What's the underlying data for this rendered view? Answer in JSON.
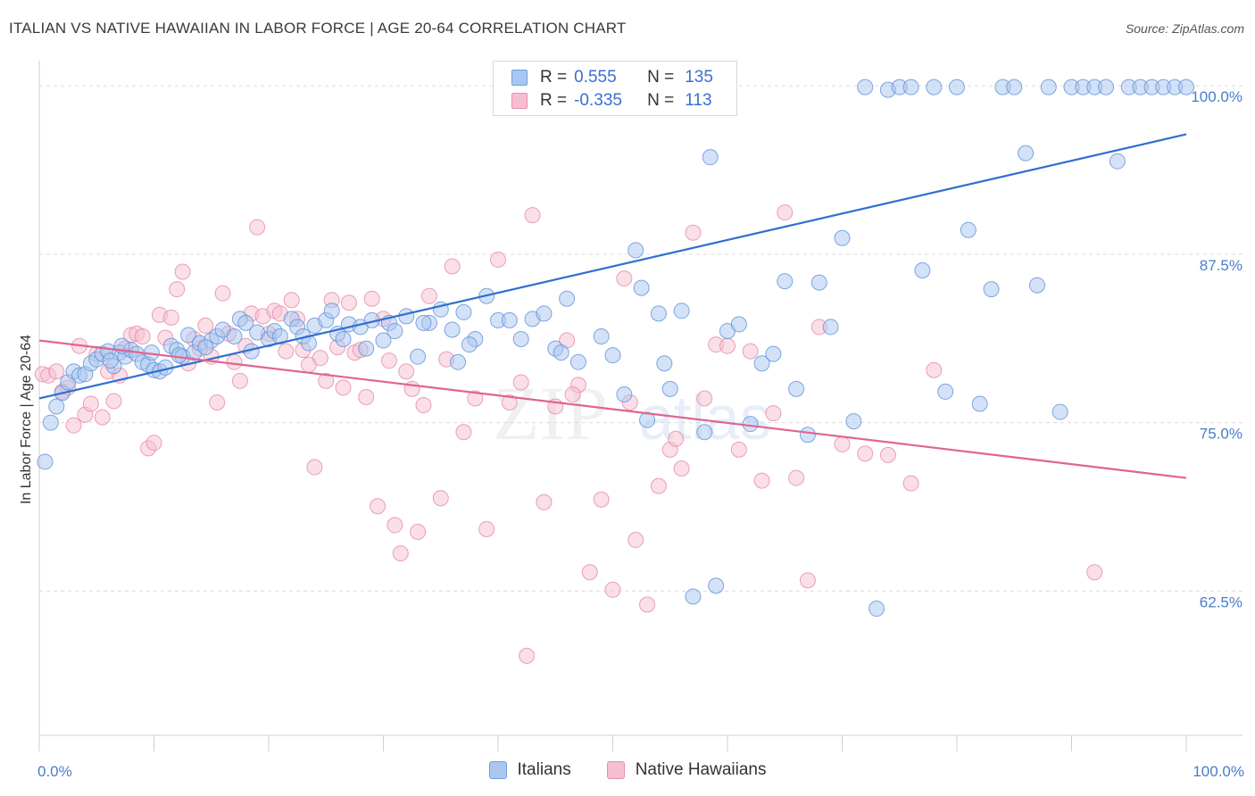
{
  "header": {
    "title": "ITALIAN VS NATIVE HAWAIIAN IN LABOR FORCE | AGE 20-64 CORRELATION CHART",
    "source": "Source: ZipAtlas.com"
  },
  "watermark": {
    "text_zip": "ZIP",
    "text_atlas": "atlas"
  },
  "legend": {
    "rows": [
      {
        "r_label": "R =",
        "r_value": "0.555",
        "n_label": "N =",
        "n_value": "135",
        "color": "#a9c6ef",
        "border": "#6f9fe0"
      },
      {
        "r_label": "R =",
        "r_value": "-0.335",
        "n_label": "N =",
        "n_value": "113",
        "color": "#f6bfd0",
        "border": "#ea8dab"
      }
    ]
  },
  "bottom_legend": {
    "italians": "Italians",
    "hawaiians": "Native Hawaiians"
  },
  "colors": {
    "blue_fill": "#a9c6ef",
    "blue_stroke": "#5f92da",
    "blue_line": "#2f6fcf",
    "pink_fill": "#f6bfd0",
    "pink_stroke": "#e68aa7",
    "pink_line": "#e0648f",
    "grid": "#dcdcdc",
    "axis_text": "#4a7cc9"
  },
  "chart_data": {
    "type": "scatter",
    "title": "ITALIAN VS NATIVE HAWAIIAN IN LABOR FORCE | AGE 20-64 CORRELATION CHART",
    "xlabel": "",
    "ylabel": "In Labor Force | Age 20-64",
    "xlim": [
      0,
      100
    ],
    "ylim": [
      51.8,
      101.2
    ],
    "x_tick_labels": [
      "0.0%",
      "100.0%"
    ],
    "y_ticks": [
      62.5,
      75.0,
      87.5,
      100.0
    ],
    "y_tick_labels": [
      "62.5%",
      "75.0%",
      "87.5%",
      "100.0%"
    ],
    "grid": true,
    "legend_position": "top-center",
    "series": [
      {
        "name": "Italians",
        "R": 0.555,
        "N": 135,
        "trend": {
          "x0": 0,
          "y0": 76.8,
          "x1": 100,
          "y1": 96.4
        },
        "points": [
          [
            0.5,
            72.1
          ],
          [
            1,
            75
          ],
          [
            1.5,
            76.2
          ],
          [
            2,
            77.2
          ],
          [
            2.5,
            78
          ],
          [
            3,
            78.8
          ],
          [
            3.5,
            78.5
          ],
          [
            4,
            78.6
          ],
          [
            4.5,
            79.4
          ],
          [
            5,
            79.7
          ],
          [
            5.5,
            80.1
          ],
          [
            6,
            80.3
          ],
          [
            6.5,
            79.2
          ],
          [
            7,
            80.2
          ],
          [
            7.5,
            79.9
          ],
          [
            8,
            80.4
          ],
          [
            8.5,
            80.1
          ],
          [
            9,
            79.5
          ],
          [
            9.5,
            79.3
          ],
          [
            10,
            78.9
          ],
          [
            10.5,
            78.8
          ],
          [
            11,
            79.1
          ],
          [
            11.5,
            80.7
          ],
          [
            12,
            80.4
          ],
          [
            12.5,
            79.9
          ],
          [
            13,
            81.5
          ],
          [
            13.5,
            80.2
          ],
          [
            14,
            80.9
          ],
          [
            15,
            81.1
          ],
          [
            15.5,
            81.4
          ],
          [
            16,
            81.9
          ],
          [
            17,
            81.4
          ],
          [
            17.5,
            82.7
          ],
          [
            18,
            82.4
          ],
          [
            19,
            81.7
          ],
          [
            20,
            81.2
          ],
          [
            20.5,
            81.8
          ],
          [
            21,
            81.4
          ],
          [
            22,
            82.7
          ],
          [
            22.5,
            82.1
          ],
          [
            23,
            81.4
          ],
          [
            24,
            82.2
          ],
          [
            25,
            82.6
          ],
          [
            25.5,
            83.3
          ],
          [
            26,
            81.6
          ],
          [
            27,
            82.3
          ],
          [
            28,
            82.1
          ],
          [
            29,
            82.6
          ],
          [
            30,
            81.1
          ],
          [
            30.5,
            82.4
          ],
          [
            31,
            81.8
          ],
          [
            32,
            82.9
          ],
          [
            33,
            79.9
          ],
          [
            34,
            82.4
          ],
          [
            35,
            83.4
          ],
          [
            36,
            81.9
          ],
          [
            36.5,
            79.5
          ],
          [
            37,
            83.2
          ],
          [
            38,
            81.2
          ],
          [
            39,
            84.4
          ],
          [
            40,
            82.6
          ],
          [
            41,
            82.6
          ],
          [
            42,
            81.2
          ],
          [
            43,
            82.7
          ],
          [
            44,
            83.1
          ],
          [
            45,
            80.5
          ],
          [
            46,
            84.2
          ],
          [
            47,
            79.5
          ],
          [
            49,
            81.4
          ],
          [
            50,
            80
          ],
          [
            51,
            77.1
          ],
          [
            52,
            87.8
          ],
          [
            52.5,
            85
          ],
          [
            53,
            75.2
          ],
          [
            54,
            83.1
          ],
          [
            55,
            77.5
          ],
          [
            56,
            83.3
          ],
          [
            57,
            62.1
          ],
          [
            58,
            74.3
          ],
          [
            58.5,
            94.7
          ],
          [
            59,
            62.9
          ],
          [
            60,
            81.8
          ],
          [
            61,
            82.3
          ],
          [
            62,
            74.9
          ],
          [
            63,
            79.4
          ],
          [
            64,
            80.1
          ],
          [
            65,
            85.5
          ],
          [
            66,
            77.5
          ],
          [
            67,
            74.1
          ],
          [
            68,
            85.4
          ],
          [
            69,
            82.1
          ],
          [
            70,
            88.7
          ],
          [
            71,
            75.1
          ],
          [
            72,
            99.9
          ],
          [
            73,
            61.2
          ],
          [
            74,
            99.7
          ],
          [
            75,
            99.9
          ],
          [
            76,
            99.9
          ],
          [
            77,
            86.3
          ],
          [
            78,
            99.9
          ],
          [
            79,
            77.3
          ],
          [
            80,
            99.9
          ],
          [
            81,
            89.3
          ],
          [
            82,
            76.4
          ],
          [
            83,
            84.9
          ],
          [
            84,
            99.9
          ],
          [
            85,
            99.9
          ],
          [
            86,
            95
          ],
          [
            87,
            85.2
          ],
          [
            88,
            99.9
          ],
          [
            89,
            75.8
          ],
          [
            90,
            99.9
          ],
          [
            91,
            99.9
          ],
          [
            92,
            99.9
          ],
          [
            93,
            99.9
          ],
          [
            94,
            94.4
          ],
          [
            95,
            99.9
          ],
          [
            96,
            99.9
          ],
          [
            97,
            99.9
          ],
          [
            98,
            99.9
          ],
          [
            99,
            99.9
          ],
          [
            100,
            99.9
          ],
          [
            54.5,
            79.4
          ],
          [
            45.5,
            80.2
          ],
          [
            37.5,
            80.8
          ],
          [
            33.5,
            82.4
          ],
          [
            28.5,
            80.5
          ],
          [
            26.5,
            81.2
          ],
          [
            23.5,
            80.9
          ],
          [
            18.5,
            80.3
          ],
          [
            14.5,
            80.6
          ],
          [
            12.2,
            80
          ],
          [
            9.8,
            80.2
          ],
          [
            7.2,
            80.7
          ],
          [
            6.2,
            79.6
          ]
        ]
      },
      {
        "name": "Native Hawaiians",
        "R": -0.335,
        "N": 113,
        "trend": {
          "x0": 0,
          "y0": 81.1,
          "x1": 100,
          "y1": 70.9
        },
        "points": [
          [
            0.3,
            78.6
          ],
          [
            0.8,
            78.5
          ],
          [
            1.5,
            78.8
          ],
          [
            2,
            77.3
          ],
          [
            2.5,
            77.6
          ],
          [
            3,
            74.8
          ],
          [
            3.5,
            80.7
          ],
          [
            4,
            75.6
          ],
          [
            4.5,
            76.4
          ],
          [
            5,
            80.1
          ],
          [
            5.5,
            75.4
          ],
          [
            6,
            78.8
          ],
          [
            6.5,
            76.6
          ],
          [
            7,
            78.5
          ],
          [
            7.5,
            80.5
          ],
          [
            8,
            81.5
          ],
          [
            8.5,
            81.6
          ],
          [
            9,
            81.4
          ],
          [
            9.5,
            73.1
          ],
          [
            10,
            73.5
          ],
          [
            10.5,
            83
          ],
          [
            11,
            81.3
          ],
          [
            11.5,
            82.8
          ],
          [
            12,
            84.9
          ],
          [
            12.5,
            86.2
          ],
          [
            13,
            79.4
          ],
          [
            13.5,
            81.2
          ],
          [
            14,
            80.5
          ],
          [
            14.5,
            82.2
          ],
          [
            15,
            79.9
          ],
          [
            15.5,
            76.5
          ],
          [
            16,
            84.6
          ],
          [
            16.5,
            81.6
          ],
          [
            17,
            79.5
          ],
          [
            17.5,
            78.1
          ],
          [
            18,
            80.7
          ],
          [
            18.5,
            83.1
          ],
          [
            19,
            89.5
          ],
          [
            19.5,
            82.9
          ],
          [
            20,
            81.6
          ],
          [
            20.5,
            83.3
          ],
          [
            21,
            83.1
          ],
          [
            21.5,
            80.3
          ],
          [
            22,
            84.1
          ],
          [
            22.5,
            82.7
          ],
          [
            23,
            80.4
          ],
          [
            23.5,
            79.3
          ],
          [
            24,
            71.7
          ],
          [
            24.5,
            79.8
          ],
          [
            25,
            78.1
          ],
          [
            25.5,
            84.1
          ],
          [
            26,
            80.6
          ],
          [
            26.5,
            77.6
          ],
          [
            27,
            83.9
          ],
          [
            27.5,
            80.2
          ],
          [
            28,
            80.4
          ],
          [
            28.5,
            76.9
          ],
          [
            29,
            84.2
          ],
          [
            29.5,
            68.8
          ],
          [
            30,
            82.7
          ],
          [
            30.5,
            79.6
          ],
          [
            31,
            67.4
          ],
          [
            31.5,
            65.3
          ],
          [
            32,
            78.8
          ],
          [
            32.5,
            77.5
          ],
          [
            33,
            66.9
          ],
          [
            33.5,
            76.3
          ],
          [
            34,
            84.4
          ],
          [
            35,
            69.4
          ],
          [
            36,
            86.6
          ],
          [
            37,
            74.3
          ],
          [
            38,
            76.8
          ],
          [
            39,
            67.1
          ],
          [
            40,
            87.1
          ],
          [
            41,
            76.5
          ],
          [
            42,
            78
          ],
          [
            43,
            90.4
          ],
          [
            44,
            69.1
          ],
          [
            45,
            76.2
          ],
          [
            46,
            81.1
          ],
          [
            47,
            77.8
          ],
          [
            48,
            63.9
          ],
          [
            49,
            69.3
          ],
          [
            50,
            62.6
          ],
          [
            51,
            85.7
          ],
          [
            52,
            66.3
          ],
          [
            53,
            61.5
          ],
          [
            54,
            70.3
          ],
          [
            55,
            73
          ],
          [
            56,
            71.6
          ],
          [
            57,
            89.1
          ],
          [
            58,
            76.8
          ],
          [
            59,
            80.8
          ],
          [
            60,
            80.7
          ],
          [
            61,
            73
          ],
          [
            62,
            80.3
          ],
          [
            63,
            70.7
          ],
          [
            64,
            75.7
          ],
          [
            65,
            90.6
          ],
          [
            66,
            70.9
          ],
          [
            67,
            63.3
          ],
          [
            68,
            82.1
          ],
          [
            70,
            73.4
          ],
          [
            72,
            72.7
          ],
          [
            74,
            72.6
          ],
          [
            76,
            70.5
          ],
          [
            78,
            78.9
          ],
          [
            92,
            63.9
          ],
          [
            42.5,
            57.7
          ],
          [
            35.5,
            79.7
          ],
          [
            46.5,
            77.1
          ],
          [
            51.5,
            76.5
          ],
          [
            55.5,
            73.8
          ]
        ]
      }
    ]
  }
}
